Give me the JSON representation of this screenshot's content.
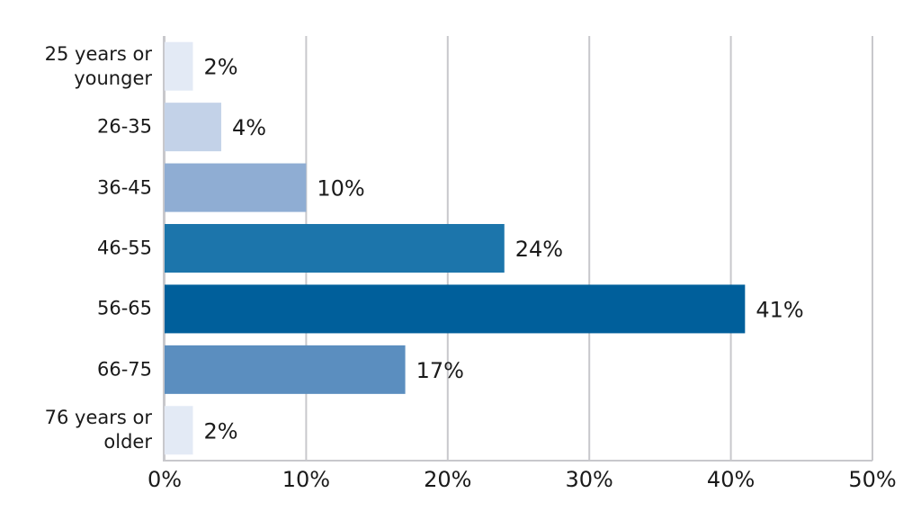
{
  "chart_data": {
    "type": "bar",
    "orientation": "horizontal",
    "categories": [
      "25 years or younger",
      "26-35",
      "36-45",
      "46-55",
      "56-65",
      "66-75",
      "76 years or older"
    ],
    "values": [
      2,
      4,
      10,
      24,
      41,
      17,
      2
    ],
    "value_labels": [
      "2%",
      "4%",
      "10%",
      "24%",
      "41%",
      "17%",
      "2%"
    ],
    "colors": [
      "#e3eaf5",
      "#c3d2e8",
      "#8fadd3",
      "#1c75ab",
      "#005f9b",
      "#5b8ebf",
      "#e3eaf5"
    ],
    "xlim": [
      0,
      50
    ],
    "xticks": [
      {
        "value": 0,
        "label": "0%"
      },
      {
        "value": 10,
        "label": "10%"
      },
      {
        "value": 20,
        "label": "20%"
      },
      {
        "value": 30,
        "label": "30%"
      },
      {
        "value": 40,
        "label": "40%"
      },
      {
        "value": 50,
        "label": "50%"
      }
    ],
    "grid": true
  }
}
